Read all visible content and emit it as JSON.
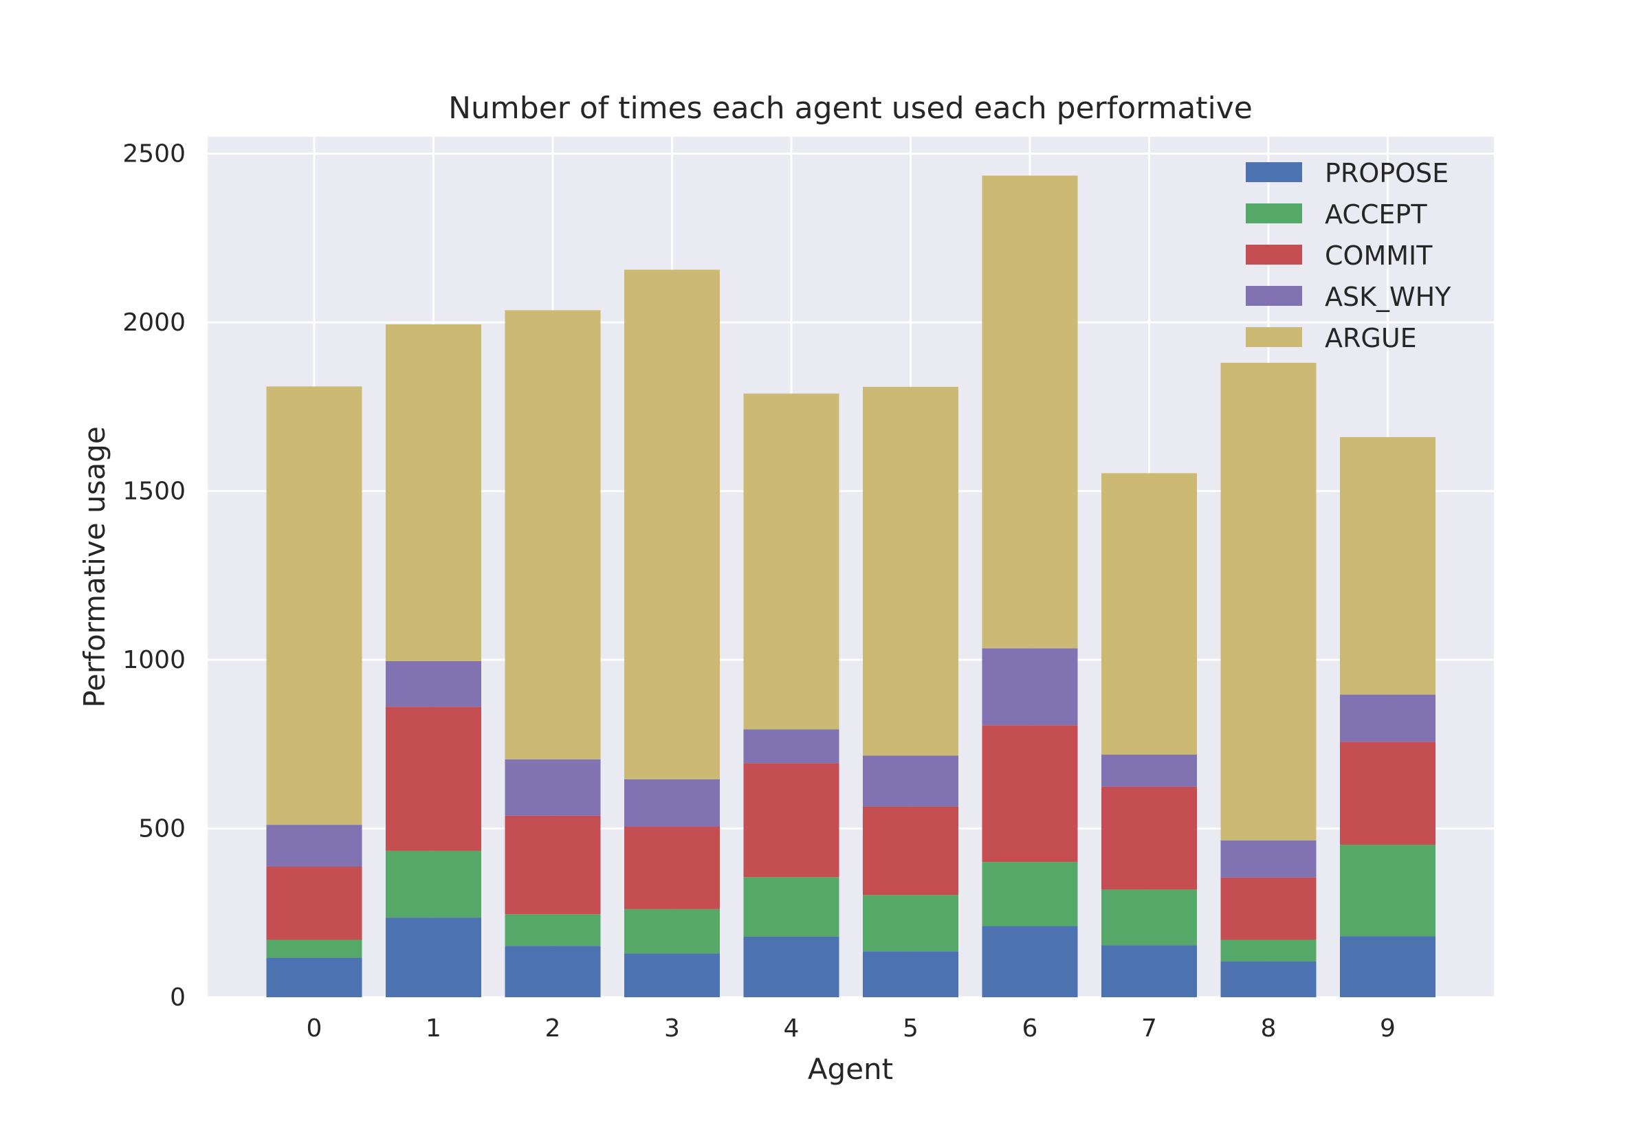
{
  "chart_data": {
    "type": "bar",
    "stacked": true,
    "title": "Number of times each agent used each performative",
    "xlabel": "Agent",
    "ylabel": "Performative usage",
    "ylim": [
      0,
      2550
    ],
    "yticks": [
      0,
      500,
      1000,
      1500,
      2000,
      2500
    ],
    "grid": true,
    "legend_position": "top-right",
    "categories": [
      "0",
      "1",
      "2",
      "3",
      "4",
      "5",
      "6",
      "7",
      "8",
      "9"
    ],
    "series": [
      {
        "name": "PROPOSE",
        "color": "#4c72b0",
        "values": [
          117,
          236,
          152,
          130,
          180,
          136,
          211,
          154,
          106,
          181
        ]
      },
      {
        "name": "ACCEPT",
        "color": "#55a868",
        "values": [
          53,
          198,
          94,
          131,
          176,
          167,
          190,
          165,
          64,
          271
        ]
      },
      {
        "name": "COMMIT",
        "color": "#c44e52",
        "values": [
          217,
          427,
          292,
          245,
          338,
          262,
          405,
          305,
          185,
          305
        ]
      },
      {
        "name": "ASK_WHY",
        "color": "#8172b2",
        "values": [
          124,
          135,
          167,
          140,
          100,
          151,
          228,
          95,
          110,
          140
        ]
      },
      {
        "name": "ARGUE",
        "color": "#ccb974",
        "values": [
          1299,
          998,
          1331,
          1510,
          995,
          1093,
          1401,
          834,
          1415,
          763
        ]
      }
    ]
  }
}
